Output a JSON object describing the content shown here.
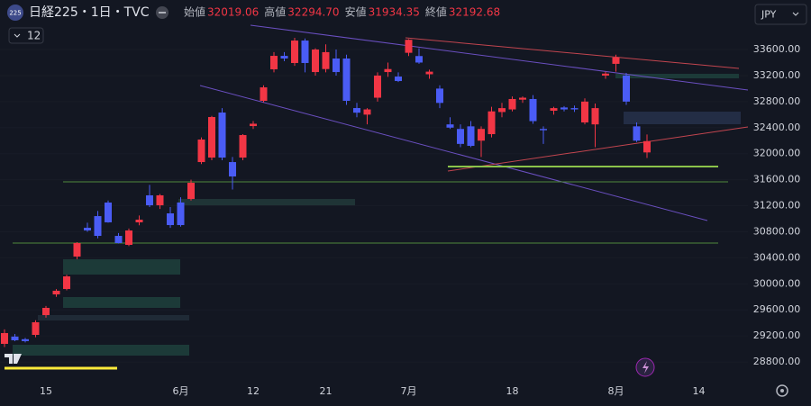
{
  "header": {
    "badge": "225",
    "symbol": "日経225・1日・TVC",
    "indicator": "12",
    "currency": "JPY",
    "ohlc": [
      {
        "label": "始値",
        "value": "32019.06"
      },
      {
        "label": "高値",
        "value": "32294.70"
      },
      {
        "label": "安値",
        "value": "31934.35"
      },
      {
        "label": "終値",
        "value": "32192.68"
      }
    ]
  },
  "chart_data": {
    "type": "candlestick",
    "categories": [
      null,
      null,
      null,
      null,
      "15",
      null,
      null,
      null,
      null,
      null,
      null,
      null,
      null,
      null,
      null,
      null,
      null,
      "6月",
      null,
      null,
      null,
      null,
      null,
      null,
      "12",
      null,
      null,
      null,
      null,
      null,
      null,
      "21",
      null,
      null,
      null,
      null,
      null,
      null,
      null,
      "7月",
      null,
      null,
      null,
      null,
      null,
      null,
      null,
      null,
      null,
      "18",
      null,
      null,
      null,
      null,
      null,
      null,
      null,
      null,
      null,
      "8月",
      null,
      null,
      null,
      null,
      null,
      null,
      null,
      "14",
      null,
      null,
      null,
      null
    ],
    "open": [
      29078,
      29190,
      29150,
      29216,
      29520,
      29838,
      29921,
      30419,
      30862,
      31041,
      31249,
      30737,
      30599,
      30945,
      31360,
      31207,
      31083,
      31250,
      31304,
      31871,
      31940,
      32632,
      31871,
      31940,
      32424,
      32812,
      33296,
      33503,
      33393,
      33738,
      33254,
      33300,
      33462,
      33462,
      32701,
      32600,
      32860,
      33254,
      33185,
      33550,
      33500,
      33220,
      33000,
      32450,
      32380,
      32420,
      32200,
      32300,
      32640,
      32680,
      32830,
      32840,
      32380,
      32660,
      32710,
      32700,
      32480,
      32450,
      33200,
      33380,
      33200,
      32420,
      32019.06,
      null,
      null,
      null,
      null,
      null,
      null,
      null,
      null,
      null
    ],
    "high": [
      29300,
      29230,
      29170,
      29440,
      29660,
      29920,
      30140,
      30640,
      30940,
      31120,
      31280,
      30780,
      30850,
      31050,
      31520,
      31380,
      31180,
      31330,
      31600,
      32250,
      32580,
      32700,
      31950,
      32300,
      32500,
      33050,
      33560,
      33560,
      33780,
      33770,
      33620,
      33680,
      33600,
      33520,
      32780,
      32700,
      33250,
      33400,
      33250,
      33760,
      33620,
      33290,
      33050,
      32560,
      32450,
      32500,
      32420,
      32720,
      32780,
      32880,
      32880,
      32900,
      32420,
      32720,
      32730,
      32740,
      32850,
      32770,
      33260,
      33520,
      33240,
      32480,
      32294.7,
      null,
      null,
      null,
      null,
      null,
      null,
      null,
      null,
      null
    ],
    "low": [
      29030,
      29120,
      29100,
      29180,
      29480,
      29800,
      29900,
      30380,
      30800,
      30700,
      30940,
      30620,
      30580,
      30900,
      31180,
      31150,
      30860,
      30880,
      31280,
      31840,
      31900,
      31900,
      31450,
      31900,
      32380,
      32790,
      33250,
      33420,
      33350,
      33250,
      33200,
      33250,
      33200,
      32750,
      32560,
      32450,
      32800,
      33180,
      33100,
      33500,
      33380,
      33150,
      32700,
      32380,
      32100,
      32100,
      31950,
      32250,
      32560,
      32650,
      32780,
      32460,
      32150,
      32600,
      32650,
      32640,
      32450,
      32100,
      33150,
      33260,
      32750,
      32180,
      31934.35,
      null,
      null,
      null,
      null,
      null,
      null,
      null,
      null,
      null
    ],
    "close": [
      29244,
      29133,
      29120,
      29410,
      29631,
      29894,
      30115,
      30627,
      30820,
      30737,
      30945,
      30627,
      30820,
      30986,
      31207,
      31360,
      30903,
      30903,
      31553,
      32217,
      32563,
      31940,
      31650,
      32286,
      32460,
      33019,
      33503,
      33462,
      33738,
      33393,
      33600,
      33560,
      33254,
      32812,
      32630,
      32680,
      33200,
      33300,
      33116,
      33750,
      33400,
      33260,
      32780,
      32400,
      32150,
      32120,
      32380,
      32650,
      32700,
      32840,
      32860,
      32500,
      32360,
      32700,
      32680,
      32680,
      32800,
      32700,
      33230,
      33480,
      32800,
      32200,
      32192.68,
      null,
      null,
      null,
      null,
      null,
      null,
      null,
      null,
      null
    ],
    "up_color": "#f23645",
    "down_color": "#4a5cf5",
    "ylim": [
      28483,
      34361
    ],
    "yticks": [
      {
        "value": 28800,
        "label": "28800.00"
      },
      {
        "value": 29200,
        "label": "29200.00"
      },
      {
        "value": 29600,
        "label": "29600.00"
      },
      {
        "value": 30000,
        "label": "30000.00"
      },
      {
        "value": 30400,
        "label": "30400.00"
      },
      {
        "value": 30800,
        "label": "30800.00"
      },
      {
        "value": 31200,
        "label": "31200.00"
      },
      {
        "value": 31600,
        "label": "31600.00"
      },
      {
        "value": 32000,
        "label": "32000.00"
      },
      {
        "value": 32400,
        "label": "32400.00"
      },
      {
        "value": 32800,
        "label": "32800.00"
      },
      {
        "value": 33200,
        "label": "33200.00"
      },
      {
        "value": 33600,
        "label": "33600.00"
      }
    ],
    "grid": true
  }
}
